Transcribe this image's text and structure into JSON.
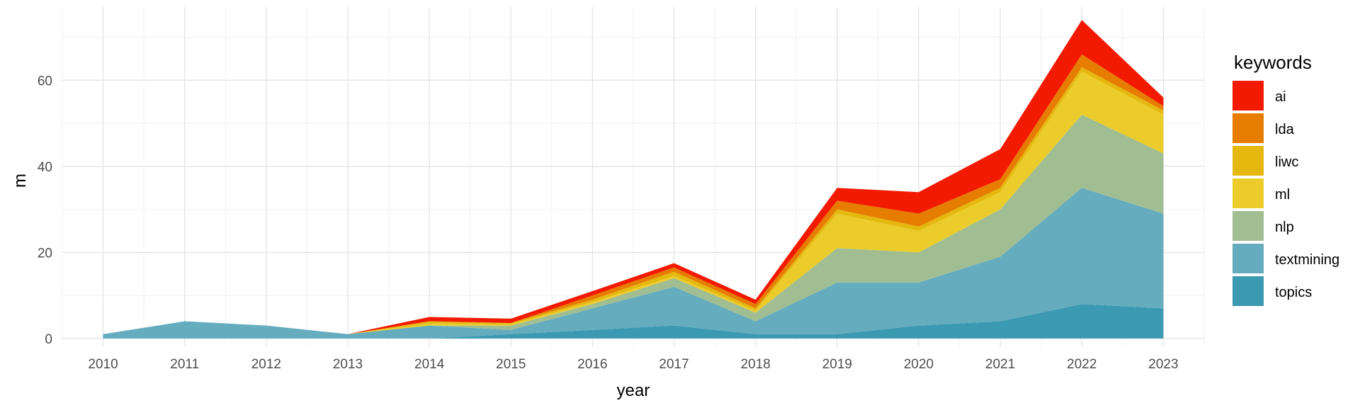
{
  "chart_data": {
    "type": "area",
    "stacked": true,
    "xlabel": "year",
    "ylabel": "m",
    "x": [
      2010,
      2011,
      2012,
      2013,
      2014,
      2015,
      2016,
      2017,
      2018,
      2019,
      2020,
      2021,
      2022,
      2023
    ],
    "x_ticks": [
      "2010",
      "2011",
      "2012",
      "2013",
      "2014",
      "2015",
      "2016",
      "2017",
      "2018",
      "2019",
      "2020",
      "2021",
      "2022",
      "2023"
    ],
    "y_ticks": [
      "0",
      "20",
      "40",
      "60"
    ],
    "ylim": [
      -2,
      77
    ],
    "grid": true,
    "legend_title": "keywords",
    "legend_position": "right",
    "series_order_bottom_to_top": [
      "topics",
      "textmining",
      "nlp",
      "ml",
      "liwc",
      "lda",
      "ai"
    ],
    "series": [
      {
        "name": "ai",
        "color": "#f21a00",
        "values": [
          0,
          0,
          0,
          0,
          1,
          1,
          1,
          1,
          1,
          3,
          5,
          7,
          8,
          2
        ]
      },
      {
        "name": "lda",
        "color": "#e67d00",
        "values": [
          0,
          0,
          0,
          0,
          0,
          0,
          1,
          1,
          1,
          2,
          3,
          2,
          3,
          1
        ]
      },
      {
        "name": "liwc",
        "color": "#e4b80e",
        "values": [
          0,
          0,
          0,
          0,
          0.5,
          0.3,
          0.5,
          1,
          0.5,
          1,
          1,
          1,
          1,
          1
        ]
      },
      {
        "name": "ml",
        "color": "#ebcc2a",
        "values": [
          0,
          0,
          0,
          0,
          0.5,
          0.3,
          0.5,
          0.5,
          0.5,
          8,
          5,
          4,
          10,
          9
        ]
      },
      {
        "name": "nlp",
        "color": "#a0be91",
        "values": [
          0,
          0,
          0,
          0,
          0,
          1,
          1,
          2,
          2,
          8,
          7,
          11,
          17,
          14
        ]
      },
      {
        "name": "textmining",
        "color": "#64acbe",
        "values": [
          1,
          4,
          3,
          1,
          3,
          1,
          5,
          9,
          3,
          12,
          10,
          15,
          27,
          22
        ]
      },
      {
        "name": "topics",
        "color": "#3b9ab2",
        "values": [
          0,
          0,
          0,
          0,
          0,
          1,
          2,
          3,
          1,
          1,
          3,
          4,
          8,
          7
        ]
      }
    ]
  }
}
